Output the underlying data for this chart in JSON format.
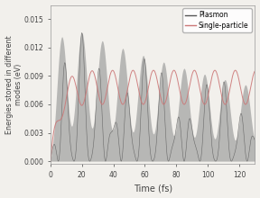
{
  "title": "",
  "xlabel": "Time (fs)",
  "ylabel": "Energies stored in different\nmodes (eV)",
  "xlim": [
    0,
    130
  ],
  "ylim": [
    -0.0003,
    0.0165
  ],
  "yticks": [
    0.0,
    0.003,
    0.006,
    0.009,
    0.012,
    0.015
  ],
  "xticks": [
    0,
    20,
    40,
    60,
    80,
    100,
    120
  ],
  "plasmon_color": "#555555",
  "plasmon_fill_color": "#888888",
  "single_color": "#cc7777",
  "legend_labels": [
    "Plasmon",
    "Single-particle"
  ],
  "figsize": [
    2.88,
    2.2
  ],
  "dpi": 100,
  "bg_color": "#f2f0ec"
}
